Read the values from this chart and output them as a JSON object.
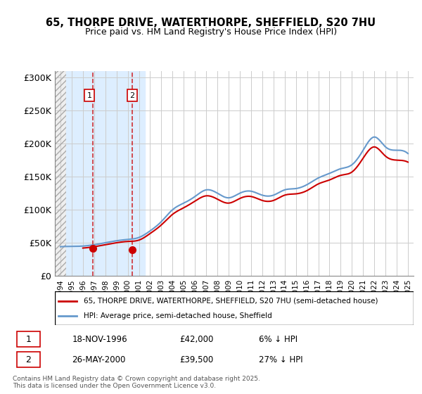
{
  "title_line1": "65, THORPE DRIVE, WATERTHORPE, SHEFFIELD, S20 7HU",
  "title_line2": "Price paid vs. HM Land Registry's House Price Index (HPI)",
  "red_line_label": "65, THORPE DRIVE, WATERTHORPE, SHEFFIELD, S20 7HU (semi-detached house)",
  "blue_line_label": "HPI: Average price, semi-detached house, Sheffield",
  "transaction1_label": "1",
  "transaction1_date": "18-NOV-1996",
  "transaction1_price": "£42,000",
  "transaction1_hpi": "6% ↓ HPI",
  "transaction1_year": 1996.88,
  "transaction1_value": 42000,
  "transaction2_label": "2",
  "transaction2_date": "26-MAY-2000",
  "transaction2_price": "£39,500",
  "transaction2_hpi": "27% ↓ HPI",
  "transaction2_year": 2000.39,
  "transaction2_value": 39500,
  "hatch_start": 1993.5,
  "hatch_end": 1994.5,
  "blue_band_start": 1994.5,
  "blue_band_end": 2001.5,
  "ylabel_ticks": [
    "£0",
    "£50K",
    "£100K",
    "£150K",
    "£200K",
    "£250K",
    "£300K"
  ],
  "ytick_values": [
    0,
    50000,
    100000,
    150000,
    200000,
    250000,
    300000
  ],
  "ylim": [
    0,
    310000
  ],
  "xlim_start": 1993.5,
  "xlim_end": 2025.5,
  "background_color": "#ffffff",
  "plot_bg_color": "#ffffff",
  "grid_color": "#cccccc",
  "red_color": "#cc0000",
  "blue_color": "#6699cc",
  "hatch_color": "#cccccc",
  "blue_band_color": "#ddeeff",
  "footnote": "Contains HM Land Registry data © Crown copyright and database right 2025.\nThis data is licensed under the Open Government Licence v3.0.",
  "hpi_years": [
    1994,
    1995,
    1996,
    1997,
    1998,
    1999,
    2000,
    2001,
    2002,
    2003,
    2004,
    2005,
    2006,
    2007,
    2008,
    2009,
    2010,
    2011,
    2012,
    2013,
    2014,
    2015,
    2016,
    2017,
    2018,
    2019,
    2020,
    2021,
    2022,
    2023,
    2024,
    2025
  ],
  "hpi_values": [
    44000,
    44500,
    45000,
    47000,
    50000,
    53000,
    55000,
    58000,
    68000,
    82000,
    100000,
    110000,
    120000,
    130000,
    125000,
    118000,
    125000,
    128000,
    122000,
    122000,
    130000,
    132000,
    138000,
    148000,
    155000,
    162000,
    168000,
    190000,
    210000,
    195000,
    190000,
    185000
  ],
  "property_years": [
    1996,
    1997,
    1998,
    1999,
    2000,
    2001,
    2002,
    2003,
    2004,
    2005,
    2006,
    2007,
    2008,
    2009,
    2010,
    2011,
    2012,
    2013,
    2014,
    2015,
    2016,
    2017,
    2018,
    2019,
    2020,
    2021,
    2022,
    2023,
    2024,
    2025
  ],
  "property_values": [
    42000,
    44000,
    47000,
    50000,
    52000,
    54000,
    64000,
    77000,
    93000,
    103000,
    113000,
    121000,
    116000,
    110000,
    117000,
    120000,
    114000,
    114000,
    122000,
    124000,
    129000,
    139000,
    145000,
    152000,
    157000,
    178000,
    195000,
    181000,
    175000,
    172000
  ]
}
